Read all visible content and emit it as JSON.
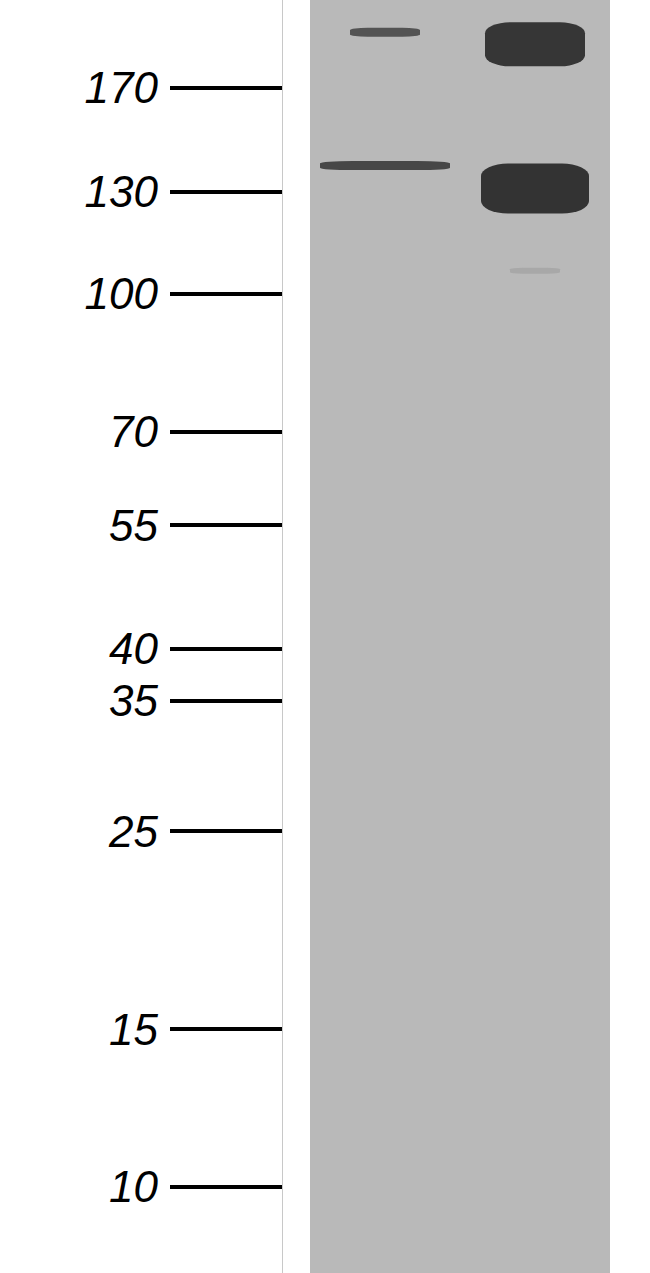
{
  "chart_data": {
    "type": "blot",
    "categories": [
      null,
      null
    ],
    "log": "y",
    "ylim": [
      8,
      213
    ],
    "yticks": [
      10,
      15,
      25,
      35,
      40,
      55,
      70,
      100,
      130,
      170
    ],
    "tick_labels": "y",
    "grid": false,
    "series": [
      {
        "values": [
          139,
          131
        ],
        "colors": [
          "#2a2a2a",
          "#111111"
        ],
        "marker": "band"
      },
      {
        "values": [
          196,
          190
        ],
        "colors": [
          "#3a3a3a",
          "#151515"
        ],
        "marker": "band"
      },
      {
        "values": [
          null,
          106
        ],
        "colors": [
          null,
          "#a4a4a4"
        ],
        "marker": "band"
      }
    ]
  }
}
